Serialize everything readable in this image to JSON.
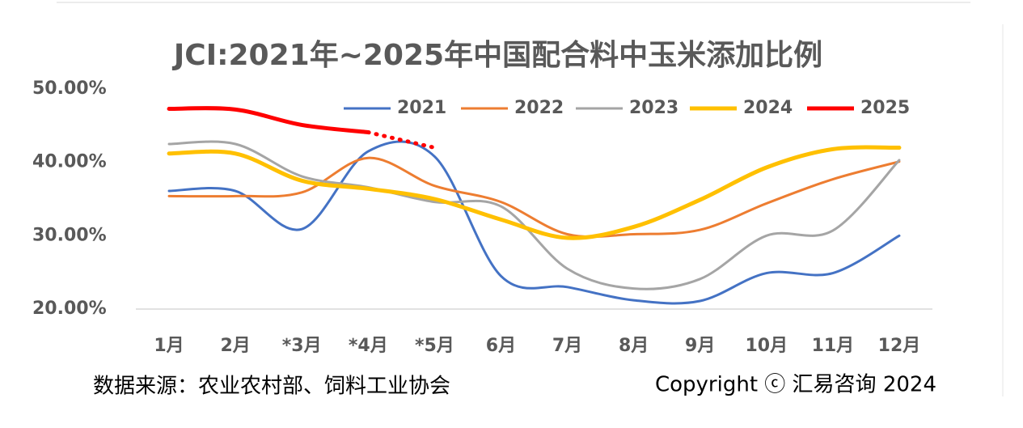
{
  "chart_data": {
    "type": "line",
    "title": "JCI:2021年~2025年中国配合料中玉米添加比例",
    "categories": [
      "1月",
      "2月",
      "*3月",
      "*4月",
      "*5月",
      "6月",
      "7月",
      "8月",
      "9月",
      "10月",
      "11月",
      "12月"
    ],
    "series": [
      {
        "name": "2021",
        "color": "#4472c4",
        "values": [
          36.1,
          36.1,
          30.9,
          41.5,
          40.8,
          24.5,
          23.0,
          21.2,
          21.1,
          24.9,
          24.9,
          30.0
        ]
      },
      {
        "name": "2022",
        "color": "#ed7d31",
        "values": [
          35.4,
          35.4,
          35.9,
          40.6,
          36.8,
          34.6,
          30.2,
          30.2,
          30.8,
          34.4,
          37.7,
          40.1
        ]
      },
      {
        "name": "2023",
        "color": "#a5a5a5",
        "values": [
          42.5,
          42.5,
          38.1,
          36.6,
          34.6,
          34.0,
          25.5,
          22.8,
          24.1,
          30.0,
          30.7,
          40.3
        ]
      },
      {
        "name": "2024",
        "color": "#ffc000",
        "values": [
          41.2,
          41.2,
          37.5,
          36.4,
          35.0,
          32.2,
          29.7,
          31.2,
          34.9,
          39.3,
          41.8,
          42.0
        ]
      },
      {
        "name": "2025",
        "color": "#ff0000",
        "values": [
          47.3,
          47.2,
          45.1,
          44.1,
          42.0,
          null,
          null,
          null,
          null,
          null,
          null,
          null
        ]
      }
    ],
    "ylim": [
      20,
      50
    ],
    "yticks": [
      {
        "value": 20,
        "label": "20.00%"
      },
      {
        "value": 30,
        "label": "30.00%"
      },
      {
        "value": 40,
        "label": "40.00%"
      },
      {
        "value": 50,
        "label": "50.00%"
      }
    ],
    "legend": "top",
    "source": "数据来源：农业农村部、饲料工业协会",
    "copyright": "Copyright ⓒ 汇易咨询 2024"
  }
}
